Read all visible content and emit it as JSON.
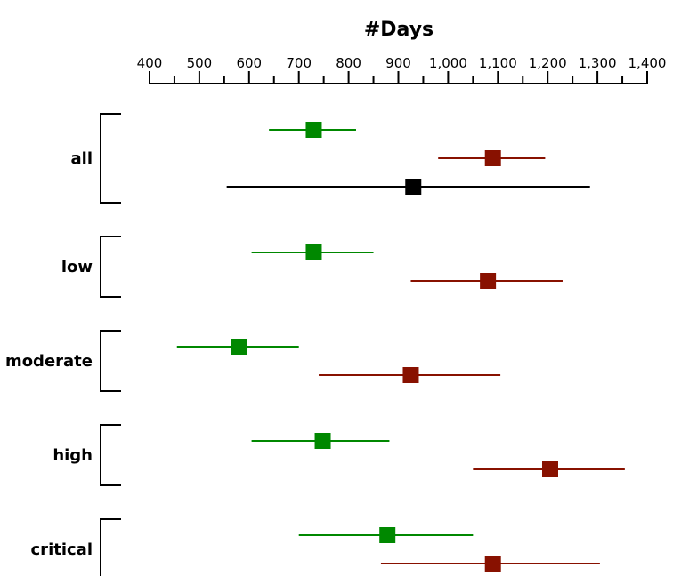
{
  "chart_data": {
    "type": "forest",
    "title": "#Days",
    "xlim": [
      400,
      1400
    ],
    "xticks": [
      400,
      500,
      600,
      700,
      800,
      900,
      1000,
      1100,
      1200,
      1300,
      1400
    ],
    "xtick_labels": [
      "400",
      "500",
      "600",
      "700",
      "800",
      "900",
      "1,000",
      "1,100",
      "1,200",
      "1,300",
      "1,400"
    ],
    "series_colors": {
      "green": "#008800",
      "red": "#881100",
      "black": "#000000"
    },
    "groups": [
      {
        "label": "all",
        "points": [
          {
            "series": "green",
            "value": 730,
            "low": 640,
            "high": 815
          },
          {
            "series": "red",
            "value": 1090,
            "low": 980,
            "high": 1195
          },
          {
            "series": "black",
            "value": 930,
            "low": 555,
            "high": 1285
          }
        ]
      },
      {
        "label": "low",
        "points": [
          {
            "series": "green",
            "value": 730,
            "low": 605,
            "high": 850
          },
          {
            "series": "red",
            "value": 1080,
            "low": 925,
            "high": 1230
          }
        ]
      },
      {
        "label": "moderate",
        "points": [
          {
            "series": "green",
            "value": 580,
            "low": 455,
            "high": 700
          },
          {
            "series": "red",
            "value": 925,
            "low": 740,
            "high": 1105
          }
        ]
      },
      {
        "label": "high",
        "points": [
          {
            "series": "green",
            "value": 748,
            "low": 605,
            "high": 882
          },
          {
            "series": "red",
            "value": 1205,
            "low": 1050,
            "high": 1355
          }
        ]
      },
      {
        "label": "critical",
        "points": [
          {
            "series": "green",
            "value": 878,
            "low": 700,
            "high": 1050
          },
          {
            "series": "red",
            "value": 1090,
            "low": 865,
            "high": 1305
          }
        ]
      }
    ]
  }
}
